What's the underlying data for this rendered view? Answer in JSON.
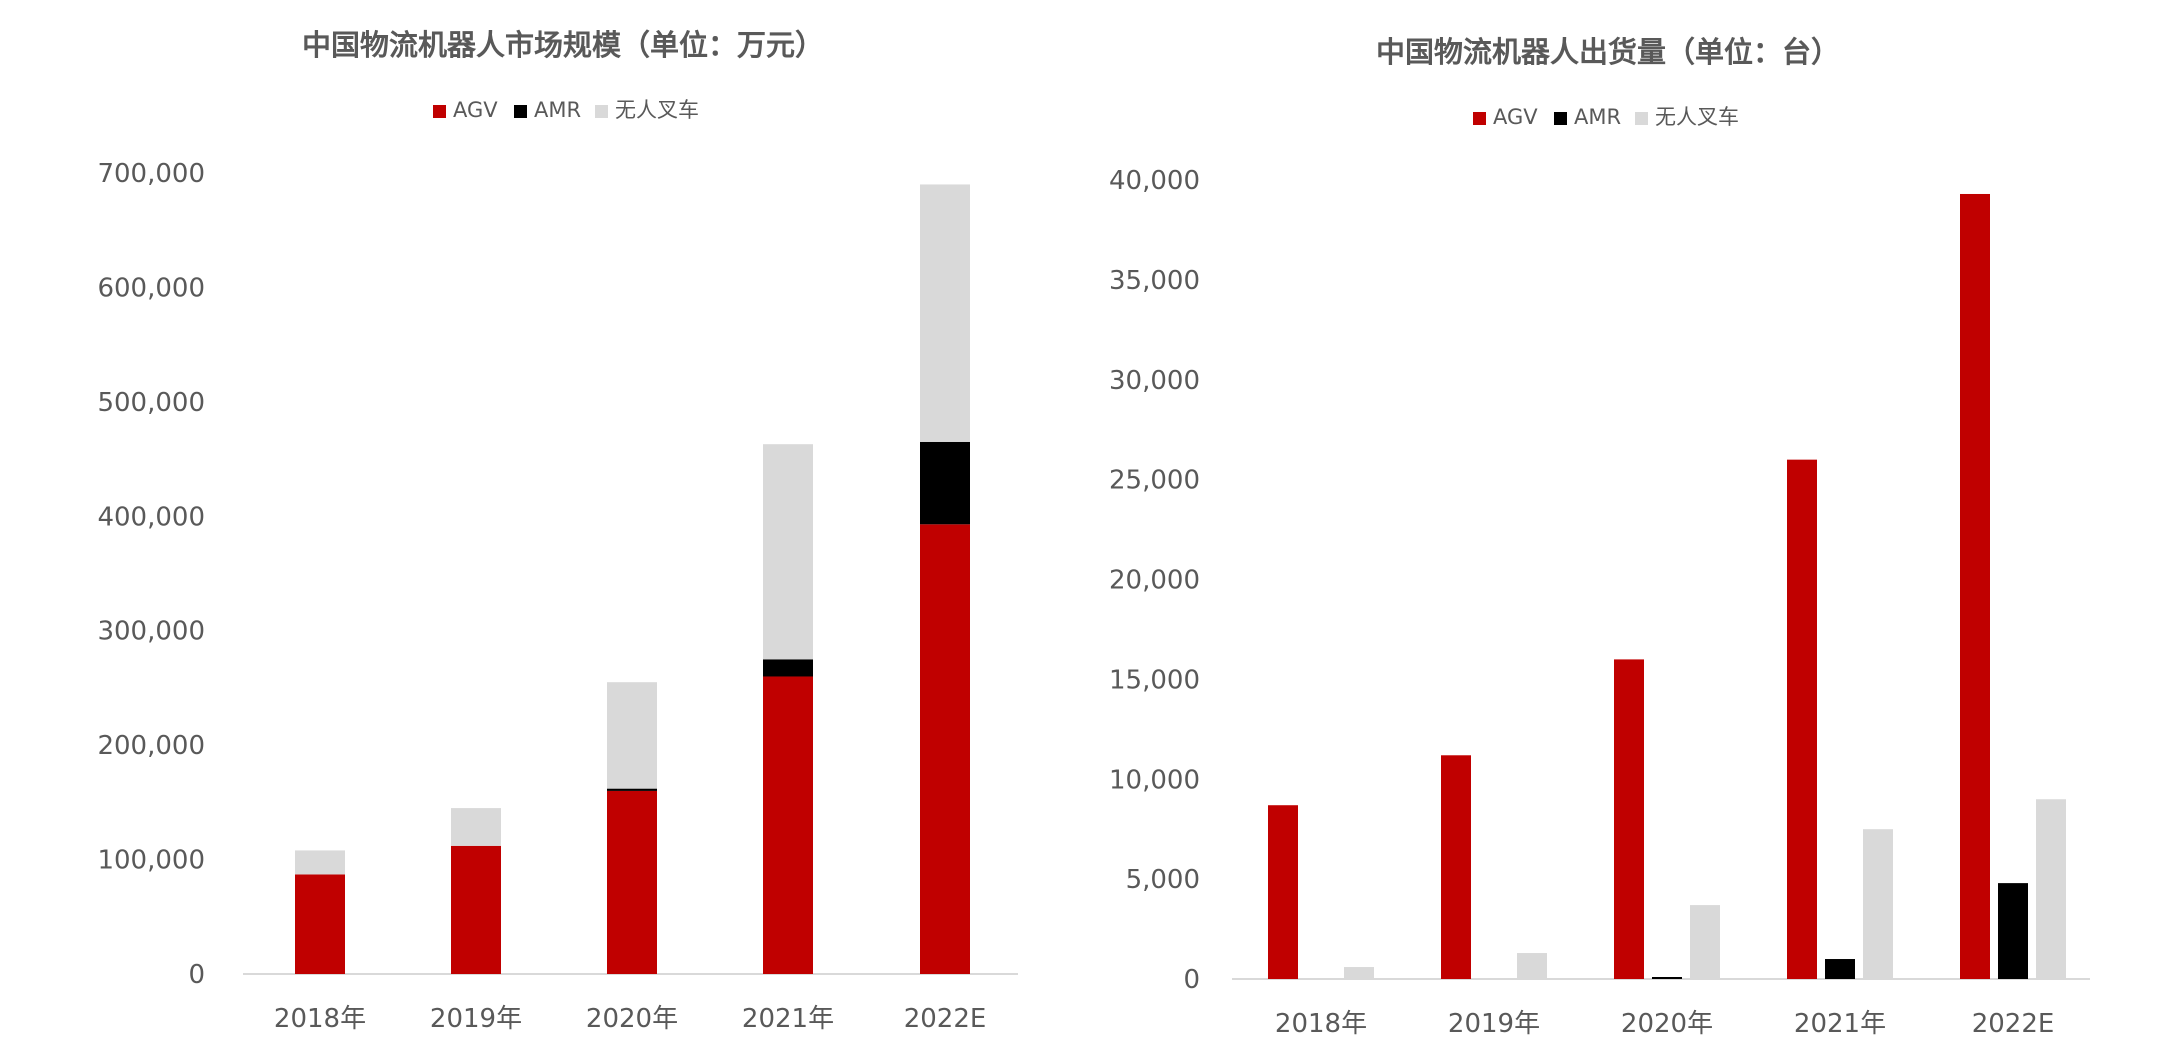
{
  "chart_data": [
    {
      "type": "bar",
      "stacked": true,
      "title": "中国物流机器人市场规模（单位：万元）",
      "categories": [
        "2018年",
        "2019年",
        "2020年",
        "2021年",
        "2022E"
      ],
      "series": [
        {
          "name": "AGV",
          "color": "#C00000",
          "values": [
            87000,
            112000,
            160000,
            260000,
            393000
          ]
        },
        {
          "name": "AMR",
          "color": "#000000",
          "values": [
            0,
            0,
            2000,
            15000,
            72000
          ]
        },
        {
          "name": "无人叉车",
          "color": "#D9D9D9",
          "values": [
            21000,
            33000,
            93000,
            188000,
            225000
          ]
        }
      ],
      "yticks": [
        "0",
        "100,000",
        "200,000",
        "300,000",
        "400,000",
        "500,000",
        "600,000",
        "700,000"
      ],
      "ylim": [
        0,
        700000
      ],
      "legend": "top-center",
      "grid": false
    },
    {
      "type": "bar",
      "stacked": false,
      "title": "中国物流机器人出货量（单位：台）",
      "categories": [
        "2018年",
        "2019年",
        "2020年",
        "2021年",
        "2022E"
      ],
      "series": [
        {
          "name": "AGV",
          "color": "#C00000",
          "values": [
            8700,
            11200,
            16000,
            26000,
            39300
          ]
        },
        {
          "name": "AMR",
          "color": "#000000",
          "values": [
            0,
            0,
            100,
            1000,
            4800
          ]
        },
        {
          "name": "无人叉车",
          "color": "#D9D9D9",
          "values": [
            600,
            1300,
            3700,
            7500,
            9000
          ]
        }
      ],
      "yticks": [
        "0",
        "5,000",
        "10,000",
        "15,000",
        "20,000",
        "25,000",
        "30,000",
        "35,000",
        "40,000"
      ],
      "ylim": [
        0,
        40000
      ],
      "legend": "top-center",
      "grid": false
    }
  ]
}
